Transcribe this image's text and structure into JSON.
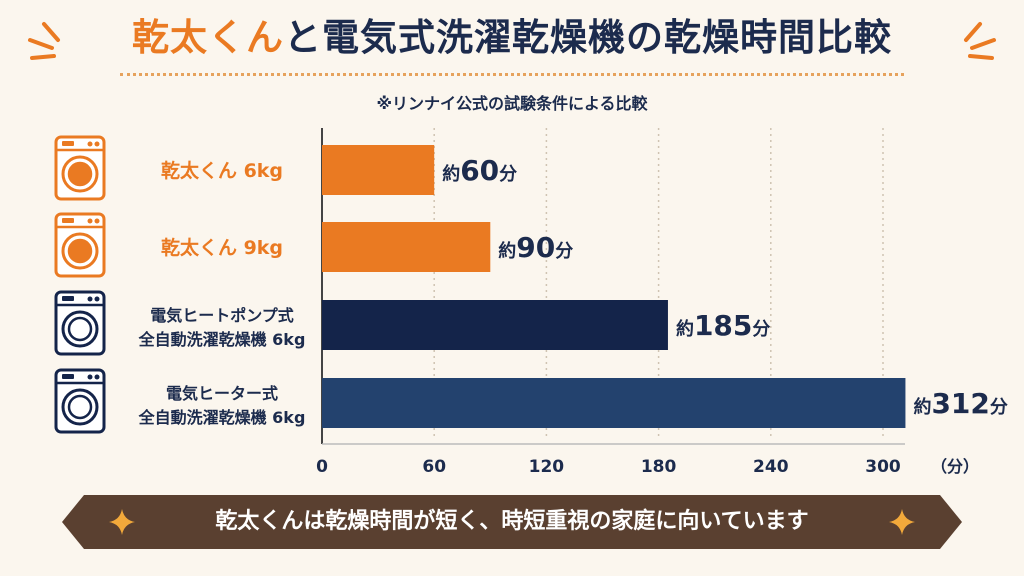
{
  "title": {
    "part1": "乾太くん",
    "part2": "と電気式洗濯乾燥機の乾燥時間比較"
  },
  "subtitle": "※リンナイ公式の試験条件による比較",
  "chart_data": {
    "type": "bar",
    "orientation": "horizontal",
    "categories": [
      [
        "乾太くん 6kg"
      ],
      [
        "乾太くん 9kg"
      ],
      [
        "電気ヒートポンプ式",
        "全自動洗濯乾燥機 6kg"
      ],
      [
        "電気ヒーター式",
        "全自動洗濯乾燥機 6kg"
      ]
    ],
    "values": [
      60,
      90,
      185,
      312
    ],
    "value_labels": [
      {
        "prefix": "約",
        "number": "60",
        "unit": "分"
      },
      {
        "prefix": "約",
        "number": "90",
        "unit": "分"
      },
      {
        "prefix": "約",
        "number": "185",
        "unit": "分"
      },
      {
        "prefix": "約",
        "number": "312",
        "unit": "分"
      }
    ],
    "bar_colors": [
      "#ea7a22",
      "#ea7a22",
      "#14244a",
      "#23426e"
    ],
    "x_ticks": [
      "0",
      "60",
      "120",
      "180",
      "240",
      "300"
    ],
    "x_tick_values": [
      0,
      60,
      120,
      180,
      240,
      300
    ],
    "x_unit": "（分）",
    "xlim": [
      0,
      312
    ],
    "grid": true,
    "icons": [
      "washer-orange-icon",
      "washer-orange-icon",
      "washer-navy-icon",
      "washer-navy-icon"
    ]
  },
  "banner": "乾太くんは乾燥時間が短く、時短重視の家庭に向いています",
  "colors": {
    "orange": "#ea7a22",
    "navy": "#14244a",
    "blue": "#23426e",
    "banner": "#5a4030",
    "background": "#fbf6ee",
    "gold": "#f2a93b"
  }
}
